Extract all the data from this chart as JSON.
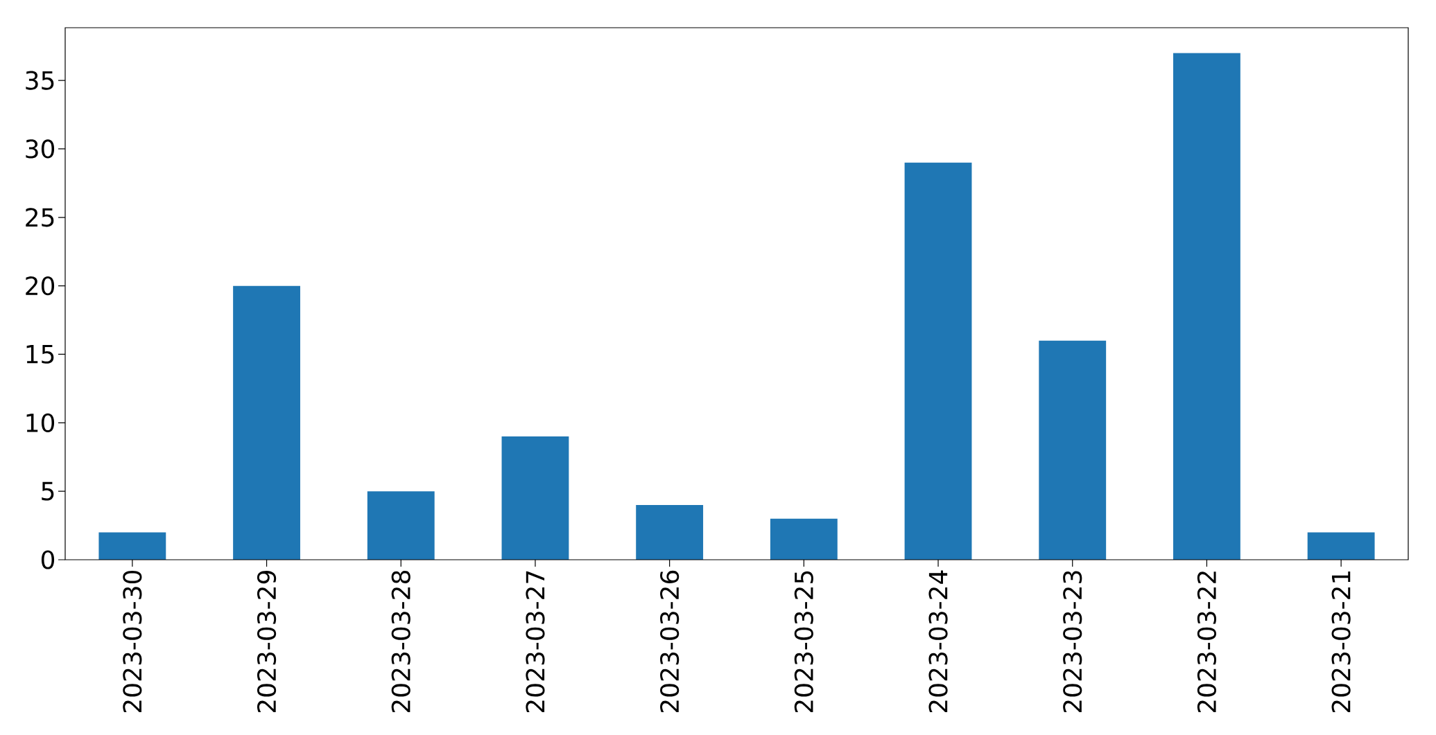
{
  "chart_data": {
    "type": "bar",
    "categories": [
      "2023-03-30",
      "2023-03-29",
      "2023-03-28",
      "2023-03-27",
      "2023-03-26",
      "2023-03-25",
      "2023-03-24",
      "2023-03-23",
      "2023-03-22",
      "2023-03-21"
    ],
    "values": [
      2,
      20,
      5,
      9,
      4,
      3,
      29,
      16,
      37,
      2
    ],
    "color": "#1f77b4",
    "ylim": [
      0,
      38.85
    ],
    "yticks": [
      0,
      5,
      10,
      15,
      20,
      25,
      30,
      35
    ]
  }
}
